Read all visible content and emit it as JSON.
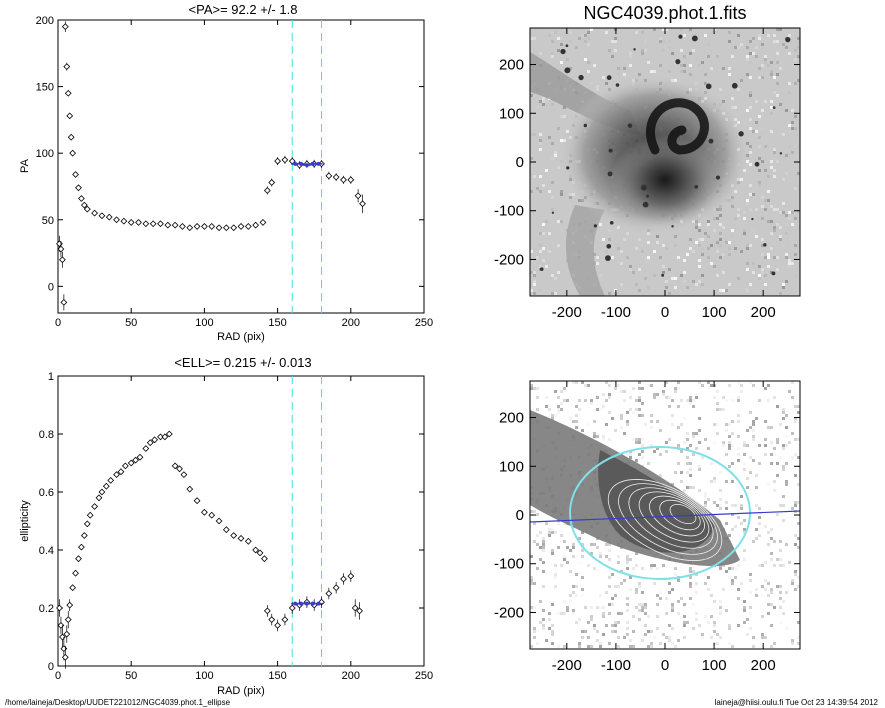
{
  "footer": {
    "path": "/home/laineja/Desktop/UUDET221012/NGC4039.phot.1_ellipse",
    "stamp": "laineja@hiisi.oulu.fi  Tue Oct 23 14:39:54 2012"
  },
  "colors": {
    "marker": "#000000",
    "fit": "#3a3ad0",
    "band": "#40e0e0",
    "ellipse": "#7fe0e8"
  },
  "chart_data": [
    {
      "type": "scatter",
      "title": "<PA>=  92.2 +/-   1.8",
      "xlabel": "RAD (pix)",
      "ylabel": "PA",
      "xlim": [
        0,
        250
      ],
      "ylim": [
        -20,
        200
      ],
      "xticks": [
        0,
        50,
        100,
        150,
        200,
        250
      ],
      "yticks": [
        0,
        50,
        100,
        150,
        200
      ],
      "band": [
        160,
        180
      ],
      "fit_points": [
        [
          162,
          92
        ],
        [
          166,
          92
        ],
        [
          170,
          91
        ],
        [
          174,
          92
        ],
        [
          178,
          92
        ]
      ],
      "x": [
        1,
        2,
        3,
        4,
        5,
        6,
        7,
        8,
        9,
        10,
        12,
        14,
        16,
        18,
        20,
        25,
        30,
        35,
        40,
        45,
        50,
        55,
        60,
        65,
        70,
        75,
        80,
        85,
        90,
        95,
        100,
        105,
        110,
        115,
        120,
        125,
        130,
        135,
        140,
        143,
        146,
        150,
        155,
        160,
        165,
        170,
        175,
        180,
        185,
        190,
        195,
        200,
        205,
        208
      ],
      "y": [
        32,
        28,
        20,
        -12,
        195,
        165,
        145,
        128,
        112,
        100,
        84,
        74,
        66,
        61,
        58,
        55,
        53,
        52,
        50,
        49,
        48,
        48,
        47,
        47,
        47,
        46,
        46,
        45,
        44,
        45,
        45,
        45,
        44,
        44,
        44,
        45,
        45,
        46,
        48,
        72,
        78,
        94,
        95,
        94,
        91,
        92,
        92,
        92,
        83,
        82,
        80,
        80,
        68,
        62
      ],
      "y_err": [
        6,
        6,
        6,
        6,
        4,
        3,
        2,
        2,
        1,
        1,
        1,
        1,
        1,
        1,
        1,
        1,
        1,
        1,
        1,
        1,
        1,
        1,
        1,
        1,
        1,
        1,
        1,
        1,
        1,
        1,
        1,
        1,
        1,
        1,
        1,
        1,
        1,
        1,
        1,
        3,
        3,
        3,
        3,
        3,
        3,
        3,
        3,
        3,
        3,
        3,
        3,
        3,
        5,
        7
      ]
    },
    {
      "type": "scatter",
      "title": "<ELL>= 0.215 +/-  0.013",
      "xlabel": "RAD (pix)",
      "ylabel": "ellipticity",
      "xlim": [
        0,
        250
      ],
      "ylim": [
        0.0,
        1.0
      ],
      "xticks": [
        0,
        50,
        100,
        150,
        200,
        250
      ],
      "yticks": [
        0.0,
        0.2,
        0.4,
        0.6,
        0.8,
        1.0
      ],
      "band": [
        160,
        180
      ],
      "fit_points": [
        [
          162,
          0.215
        ],
        [
          166,
          0.215
        ],
        [
          170,
          0.215
        ],
        [
          174,
          0.215
        ],
        [
          178,
          0.215
        ]
      ],
      "x": [
        1,
        2,
        3,
        4,
        5,
        6,
        7,
        8,
        10,
        12,
        14,
        16,
        18,
        20,
        22,
        25,
        28,
        30,
        33,
        36,
        40,
        43,
        46,
        50,
        53,
        56,
        60,
        63,
        66,
        70,
        73,
        76,
        80,
        83,
        86,
        90,
        95,
        100,
        105,
        110,
        115,
        120,
        125,
        130,
        135,
        138,
        141,
        143,
        146,
        150,
        155,
        160,
        165,
        170,
        175,
        180,
        185,
        190,
        195,
        200,
        203,
        206
      ],
      "y": [
        0.2,
        0.14,
        0.1,
        0.06,
        0.03,
        0.11,
        0.16,
        0.21,
        0.27,
        0.32,
        0.37,
        0.41,
        0.45,
        0.49,
        0.52,
        0.55,
        0.58,
        0.6,
        0.62,
        0.64,
        0.66,
        0.67,
        0.69,
        0.7,
        0.71,
        0.72,
        0.75,
        0.77,
        0.78,
        0.79,
        0.79,
        0.8,
        0.69,
        0.68,
        0.66,
        0.61,
        0.57,
        0.53,
        0.52,
        0.5,
        0.47,
        0.45,
        0.44,
        0.43,
        0.4,
        0.39,
        0.37,
        0.19,
        0.16,
        0.14,
        0.16,
        0.2,
        0.21,
        0.22,
        0.21,
        0.22,
        0.25,
        0.27,
        0.3,
        0.31,
        0.2,
        0.19
      ],
      "y_err": [
        0.03,
        0.03,
        0.04,
        0.04,
        0.04,
        0.03,
        0.03,
        0.02,
        0.01,
        0.01,
        0.01,
        0.01,
        0.01,
        0.01,
        0.01,
        0.01,
        0.01,
        0.01,
        0.01,
        0.01,
        0.01,
        0.01,
        0.01,
        0.01,
        0.01,
        0.01,
        0.01,
        0.01,
        0.01,
        0.01,
        0.01,
        0.01,
        0.01,
        0.01,
        0.01,
        0.01,
        0.01,
        0.01,
        0.01,
        0.01,
        0.01,
        0.01,
        0.01,
        0.01,
        0.01,
        0.01,
        0.01,
        0.02,
        0.02,
        0.02,
        0.02,
        0.02,
        0.02,
        0.02,
        0.02,
        0.02,
        0.02,
        0.02,
        0.02,
        0.02,
        0.03,
        0.03
      ]
    },
    {
      "type": "heatmap",
      "title": "NGC4039.phot.1.fits",
      "xlim": [
        -275,
        275
      ],
      "ylim": [
        -275,
        275
      ],
      "xticks": [
        -200,
        -100,
        0,
        100,
        200
      ],
      "yticks": [
        -200,
        -100,
        0,
        100,
        200
      ]
    },
    {
      "type": "heatmap",
      "title": "",
      "xlim": [
        -275,
        275
      ],
      "ylim": [
        -275,
        275
      ],
      "xticks": [
        -200,
        -100,
        0,
        100,
        200
      ],
      "yticks": [
        -200,
        -100,
        0,
        100,
        200
      ]
    }
  ]
}
